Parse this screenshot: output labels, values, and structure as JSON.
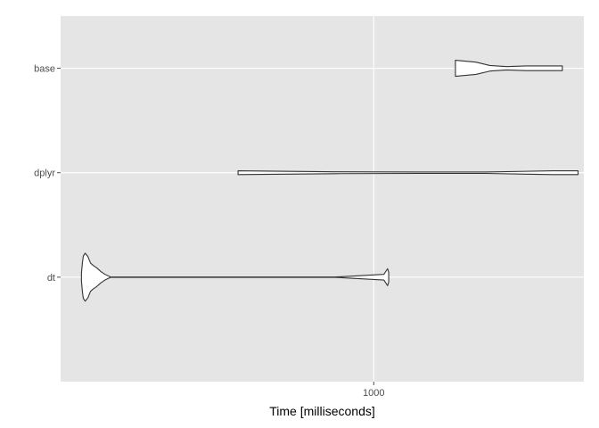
{
  "chart_data": {
    "type": "violin",
    "orientation": "horizontal",
    "title": "",
    "xlabel": "Time [milliseconds]",
    "ylabel": "",
    "x_scale": "log10",
    "xlim": [
      165,
      3350
    ],
    "x_ticks": [
      {
        "value": 1000,
        "label": "1000"
      }
    ],
    "categories": [
      "base",
      "dplyr",
      "dt"
    ],
    "grid": true,
    "background": "#e5e5e5",
    "grid_color": "#ffffff",
    "outline_color": "#333333",
    "series": [
      {
        "category": "base",
        "shape": [
          [
            1600,
            0.17
          ],
          [
            1800,
            0.13
          ],
          [
            1950,
            0.06
          ],
          [
            2150,
            0.035
          ],
          [
            2400,
            0.05
          ],
          [
            2700,
            0.05
          ],
          [
            2960,
            0.05
          ]
        ]
      },
      {
        "category": "dplyr",
        "shape": [
          [
            458,
            0.04
          ],
          [
            800,
            0.02
          ],
          [
            1300,
            0.015
          ],
          [
            1900,
            0.015
          ],
          [
            2400,
            0.03
          ],
          [
            2800,
            0.04
          ],
          [
            3240,
            0.04
          ]
        ]
      },
      {
        "category": "dt",
        "shape": [
          [
            186,
            0.08
          ],
          [
            187,
            0.3
          ],
          [
            188,
            0.45
          ],
          [
            190,
            0.51
          ],
          [
            193,
            0.44
          ],
          [
            196,
            0.3
          ],
          [
            199,
            0.25
          ],
          [
            203,
            0.2
          ],
          [
            208,
            0.12
          ],
          [
            213,
            0.06
          ],
          [
            220,
            0.0035
          ],
          [
            800,
            0.0035
          ],
          [
            1060,
            0.06
          ],
          [
            1083,
            0.18
          ],
          [
            1090,
            0.1
          ]
        ]
      }
    ]
  }
}
